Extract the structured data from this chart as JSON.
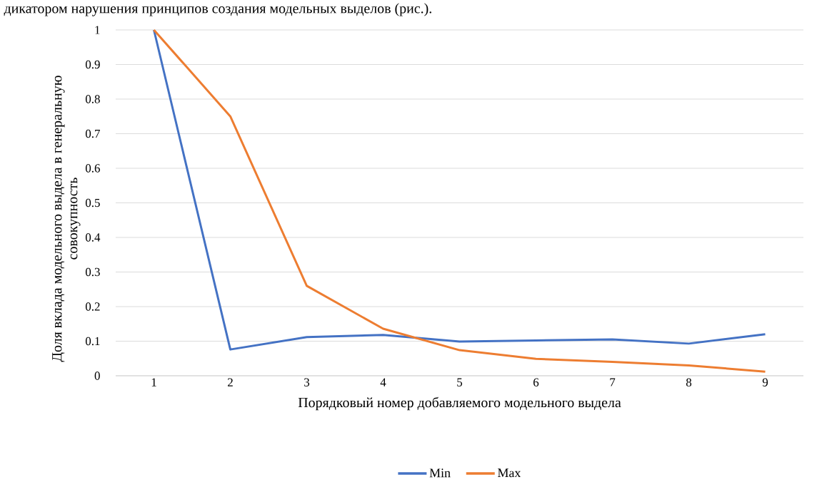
{
  "chart_data": {
    "type": "line",
    "annotations": [
      "дикатором нарушения принципов создания модельных выделов (рис.)."
    ],
    "xlabel": "Порядковый номер добавляемого модельного выдела",
    "ylabel": "Доля вклада модельного выдела в генеральную совокупность",
    "categories": [
      "1",
      "2",
      "3",
      "4",
      "5",
      "6",
      "7",
      "8",
      "9"
    ],
    "series": [
      {
        "name": "Min",
        "color": "#4472c4",
        "values": [
          1.0,
          0.076,
          0.112,
          0.118,
          0.099,
          0.102,
          0.105,
          0.093,
          0.12
        ]
      },
      {
        "name": "Max",
        "color": "#ed7d31",
        "values": [
          1.0,
          0.75,
          0.26,
          0.136,
          0.074,
          0.049,
          0.04,
          0.03,
          0.012
        ]
      }
    ],
    "ylim": [
      0,
      1
    ],
    "yticks": [
      0,
      0.1,
      0.2,
      0.3,
      0.4,
      0.5,
      0.6,
      0.7,
      0.8,
      0.9,
      1
    ],
    "grid": "y",
    "legend": "bottom",
    "marker": "none",
    "line_style": "solid"
  }
}
